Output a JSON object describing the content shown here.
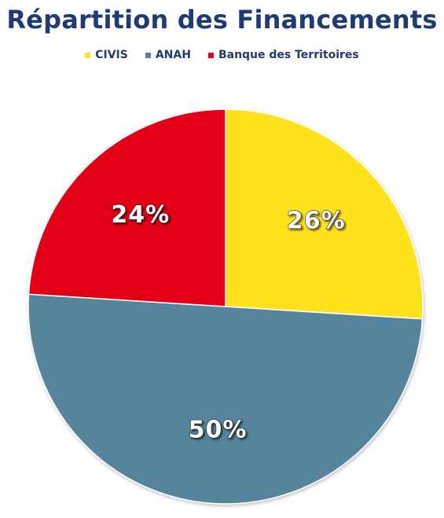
{
  "chart_data": {
    "type": "pie",
    "title": "Répartition des Financements",
    "categories": [
      "CIVIS",
      "ANAH",
      "Banque des Territoires"
    ],
    "values": [
      26,
      50,
      24
    ],
    "value_labels": [
      "26%",
      "50%",
      "24%"
    ],
    "colors": [
      "#FFE11E",
      "#56849C",
      "#E30613"
    ],
    "legend_position": "top",
    "start_angle_deg": 0,
    "direction": "clockwise"
  }
}
